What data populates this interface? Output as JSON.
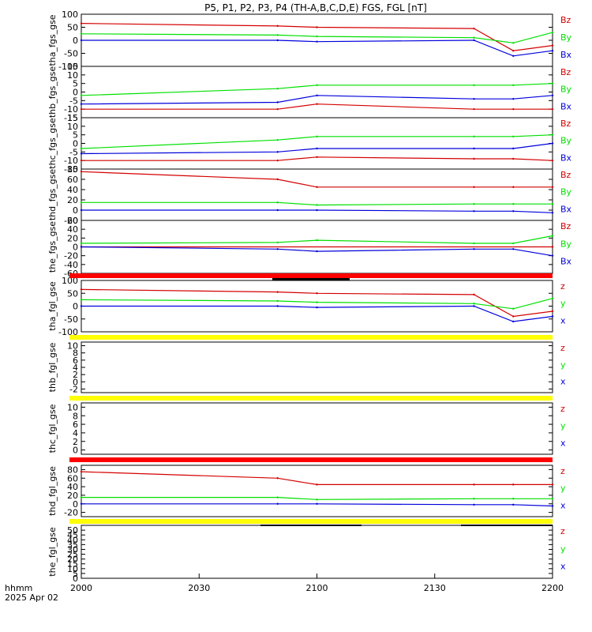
{
  "title": "P5, P1, P2, P3, P4 (TH-A,B,C,D,E) FGS, FGL [nT]",
  "x_axis": {
    "ticks": [
      "2000",
      "2030",
      "2100",
      "2130",
      "2200"
    ],
    "label_line1": "hhmm",
    "label_line2": "2025 Apr 02"
  },
  "colors": {
    "z": "#d40000",
    "y": "#00e000",
    "x": "#0000dd",
    "bar_red": "#ff0000",
    "bar_yellow": "#ffff00",
    "axis": "#000000"
  },
  "chart_data": [
    {
      "type": "line",
      "panel": "tha_fgs_gse",
      "ylabel": "tha_fgs_gse",
      "ylim": [
        -100,
        100
      ],
      "yticks": [
        "100",
        "50",
        "0",
        "-50",
        "-100"
      ],
      "legend": [
        "Bz",
        "By",
        "Bx"
      ],
      "series": [
        {
          "name": "Bz",
          "x": [
            "2000",
            "2050",
            "2100",
            "2140",
            "2150",
            "2200"
          ],
          "values": [
            65,
            55,
            50,
            45,
            -40,
            -20
          ]
        },
        {
          "name": "By",
          "x": [
            "2000",
            "2050",
            "2100",
            "2140",
            "2150",
            "2200"
          ],
          "values": [
            25,
            20,
            15,
            10,
            -10,
            30
          ]
        },
        {
          "name": "Bx",
          "x": [
            "2000",
            "2050",
            "2100",
            "2140",
            "2150",
            "2200"
          ],
          "values": [
            0,
            0,
            -5,
            0,
            -60,
            -40
          ]
        }
      ]
    },
    {
      "type": "line",
      "panel": "thb_fgs_gse",
      "ylabel": "thb_fgs_gse",
      "ylim": [
        -15,
        15
      ],
      "yticks": [
        "15",
        "10",
        "5",
        "0",
        "-5",
        "-10",
        "-15"
      ],
      "legend": [
        "Bz",
        "By",
        "Bx"
      ],
      "series": [
        {
          "name": "Bz",
          "x": [
            "2000",
            "2050",
            "2100",
            "2140",
            "2150",
            "2200"
          ],
          "values": [
            -10,
            -10,
            -7,
            -10,
            -10,
            -10
          ]
        },
        {
          "name": "By",
          "x": [
            "2000",
            "2050",
            "2100",
            "2140",
            "2150",
            "2200"
          ],
          "values": [
            -2,
            2,
            4,
            4,
            4,
            5
          ]
        },
        {
          "name": "Bx",
          "x": [
            "2000",
            "2050",
            "2100",
            "2140",
            "2150",
            "2200"
          ],
          "values": [
            -7,
            -6,
            -2,
            -4,
            -4,
            -2
          ]
        }
      ]
    },
    {
      "type": "line",
      "panel": "thc_fgs_gse",
      "ylabel": "thc_fgs_gse",
      "ylim": [
        -15,
        15
      ],
      "yticks": [
        "15",
        "10",
        "5",
        "0",
        "-5",
        "-10",
        "-15"
      ],
      "legend": [
        "Bz",
        "By",
        "Bx"
      ],
      "series": [
        {
          "name": "Bz",
          "x": [
            "2000",
            "2050",
            "2100",
            "2140",
            "2150",
            "2200"
          ],
          "values": [
            -10,
            -10,
            -8,
            -9,
            -9,
            -10
          ]
        },
        {
          "name": "By",
          "x": [
            "2000",
            "2050",
            "2100",
            "2140",
            "2150",
            "2200"
          ],
          "values": [
            -3,
            2,
            4,
            4,
            4,
            5
          ]
        },
        {
          "name": "Bx",
          "x": [
            "2000",
            "2050",
            "2100",
            "2140",
            "2150",
            "2200"
          ],
          "values": [
            -6,
            -5,
            -3,
            -3,
            -3,
            0
          ]
        }
      ]
    },
    {
      "type": "line",
      "panel": "thd_fgs_gse",
      "ylabel": "thd_fgs_gse",
      "ylim": [
        -20,
        80
      ],
      "yticks": [
        "80",
        "60",
        "40",
        "20",
        "0",
        "-20"
      ],
      "legend": [
        "Bz",
        "By",
        "Bx"
      ],
      "series": [
        {
          "name": "Bz",
          "x": [
            "2000",
            "2050",
            "2100",
            "2140",
            "2150",
            "2200"
          ],
          "values": [
            75,
            60,
            45,
            45,
            45,
            45
          ]
        },
        {
          "name": "By",
          "x": [
            "2000",
            "2050",
            "2100",
            "2140",
            "2150",
            "2200"
          ],
          "values": [
            15,
            15,
            10,
            12,
            12,
            12
          ]
        },
        {
          "name": "Bx",
          "x": [
            "2000",
            "2050",
            "2100",
            "2140",
            "2150",
            "2200"
          ],
          "values": [
            0,
            0,
            0,
            -2,
            -2,
            -5
          ]
        }
      ]
    },
    {
      "type": "line",
      "panel": "the_fgs_gse",
      "ylabel": "the_fgs_gse",
      "ylim": [
        -60,
        60
      ],
      "yticks": [
        "60",
        "40",
        "20",
        "0",
        "-20",
        "-40",
        "-60"
      ],
      "legend": [
        "Bz",
        "By",
        "Bx"
      ],
      "series": [
        {
          "name": "Bz",
          "x": [
            "2000",
            "2200"
          ],
          "values": [
            0,
            0
          ]
        },
        {
          "name": "By",
          "x": [
            "2000",
            "2050",
            "2100",
            "2140",
            "2150",
            "2200"
          ],
          "values": [
            8,
            10,
            15,
            8,
            8,
            25
          ]
        },
        {
          "name": "Bx",
          "x": [
            "2000",
            "2050",
            "2100",
            "2140",
            "2150",
            "2200"
          ],
          "values": [
            0,
            -5,
            -10,
            -5,
            -5,
            -20
          ]
        }
      ]
    },
    {
      "type": "line",
      "panel": "tha_fgl_gse",
      "ylabel": "tha_fgl_gse",
      "ylim": [
        -100,
        100
      ],
      "yticks": [
        "100",
        "50",
        "0",
        "-50",
        "-100"
      ],
      "legend": [
        "z",
        "y",
        "x"
      ],
      "series": [
        {
          "name": "z",
          "x": [
            "2000",
            "2050",
            "2100",
            "2140",
            "2150",
            "2200"
          ],
          "values": [
            65,
            55,
            50,
            45,
            -40,
            -20
          ]
        },
        {
          "name": "y",
          "x": [
            "2000",
            "2050",
            "2100",
            "2140",
            "2150",
            "2200"
          ],
          "values": [
            25,
            20,
            15,
            10,
            -10,
            30
          ]
        },
        {
          "name": "x",
          "x": [
            "2000",
            "2050",
            "2100",
            "2140",
            "2150",
            "2200"
          ],
          "values": [
            0,
            0,
            -5,
            0,
            -60,
            -40
          ]
        }
      ]
    },
    {
      "type": "line",
      "panel": "thb_fgl_gse",
      "ylabel": "thb_fgl_gse",
      "ylim": [
        -3,
        11
      ],
      "yticks": [
        "10",
        "8",
        "6",
        "4",
        "2",
        "0",
        "-2"
      ],
      "legend": [
        "z",
        "y",
        "x"
      ],
      "series": []
    },
    {
      "type": "line",
      "panel": "thc_fgl_gse",
      "ylabel": "thc_fgl_gse",
      "ylim": [
        -1,
        11
      ],
      "yticks": [
        "10",
        "8",
        "6",
        "4",
        "2",
        "0"
      ],
      "legend": [
        "z",
        "y",
        "x"
      ],
      "series": []
    },
    {
      "type": "line",
      "panel": "thd_fgl_gse",
      "ylabel": "thd_fgl_gse",
      "ylim": [
        -30,
        90
      ],
      "yticks": [
        "80",
        "60",
        "40",
        "20",
        "0",
        "-20"
      ],
      "legend": [
        "z",
        "y",
        "x"
      ],
      "series": [
        {
          "name": "z",
          "x": [
            "2000",
            "2050",
            "2100",
            "2140",
            "2150",
            "2200"
          ],
          "values": [
            75,
            60,
            45,
            45,
            45,
            45
          ]
        },
        {
          "name": "y",
          "x": [
            "2000",
            "2050",
            "2100",
            "2140",
            "2150",
            "2200"
          ],
          "values": [
            15,
            15,
            10,
            12,
            12,
            12
          ]
        },
        {
          "name": "x",
          "x": [
            "2000",
            "2050",
            "2100",
            "2140",
            "2150",
            "2200"
          ],
          "values": [
            0,
            0,
            0,
            -2,
            -2,
            -5
          ]
        }
      ]
    },
    {
      "type": "line",
      "panel": "the_fgl_gse",
      "ylabel": "the_fgl_gse",
      "ylim": [
        0,
        55
      ],
      "yticks": [
        "50",
        "45",
        "40",
        "35",
        "30",
        "25",
        "20",
        "15",
        "10",
        "5",
        "0"
      ],
      "legend": [
        "z",
        "y",
        "x"
      ],
      "series": []
    }
  ]
}
